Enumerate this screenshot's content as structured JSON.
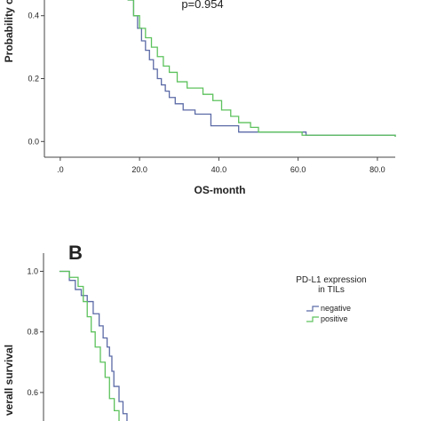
{
  "chart_data": [
    {
      "type": "line",
      "step": true,
      "y_label": "Probability o",
      "x_label": "OS-month",
      "annotation": "p=0.954",
      "xlim": [
        -4,
        84.5
      ],
      "ylim": [
        -0.05,
        0.45
      ],
      "xticks": [
        {
          "value": 0,
          "label": ".0"
        },
        {
          "value": 20,
          "label": "20.0"
        },
        {
          "value": 40,
          "label": "40.0"
        },
        {
          "value": 60,
          "label": "60.0"
        },
        {
          "value": 80,
          "label": "80.0"
        }
      ],
      "yticks": [
        {
          "value": 0,
          "label": "0.0"
        },
        0.2,
        0.4
      ],
      "series": [
        {
          "name": "negative",
          "color": "#5b6aa6",
          "x": [
            17,
            18.5,
            19.5,
            20.5,
            21.5,
            22.5,
            23.5,
            24.5,
            25.5,
            26.5,
            27.5,
            29,
            31,
            34,
            38,
            45,
            62,
            84.5
          ],
          "values": [
            0.45,
            0.4,
            0.36,
            0.32,
            0.29,
            0.26,
            0.23,
            0.2,
            0.18,
            0.16,
            0.14,
            0.12,
            0.1,
            0.087,
            0.05,
            0.03,
            0.02,
            0.015
          ]
        },
        {
          "name": "positive",
          "color": "#5dc25d",
          "x": [
            17,
            18.5,
            20,
            21.5,
            23,
            24.5,
            26,
            27.5,
            29.5,
            32,
            36,
            38.5,
            40.7,
            43,
            45,
            48,
            50,
            61,
            84.5
          ],
          "values": [
            0.45,
            0.4,
            0.36,
            0.33,
            0.3,
            0.27,
            0.24,
            0.22,
            0.19,
            0.17,
            0.15,
            0.13,
            0.1,
            0.08,
            0.06,
            0.045,
            0.03,
            0.02,
            0.015
          ]
        }
      ]
    },
    {
      "type": "line",
      "step": true,
      "panel_label": "B",
      "y_label": "verall survival",
      "legend_title": [
        "PD-L1 expression",
        "in TILs"
      ],
      "xlim": [
        -4,
        84.5
      ],
      "ylim": [
        0.5,
        1.06
      ],
      "yticks": [
        0.6,
        0.8,
        {
          "value": 1,
          "label": "1.0"
        }
      ],
      "series": [
        {
          "name": "negative",
          "color": "#5b6aa6",
          "x": [
            0,
            2.5,
            4,
            5.5,
            7,
            8.5,
            10,
            11,
            12,
            12.6,
            13.2,
            13.7,
            15,
            16,
            17
          ],
          "values": [
            1,
            0.97,
            0.94,
            0.92,
            0.9,
            0.86,
            0.82,
            0.78,
            0.75,
            0.72,
            0.67,
            0.62,
            0.57,
            0.53,
            0.5
          ]
        },
        {
          "name": "positive",
          "color": "#5dc25d",
          "x": [
            0,
            2.5,
            4.7,
            6,
            7,
            8,
            9,
            10.3,
            11.5,
            12.6,
            13.8,
            15
          ],
          "values": [
            1,
            0.98,
            0.95,
            0.9,
            0.85,
            0.8,
            0.75,
            0.7,
            0.65,
            0.58,
            0.54,
            0.5
          ]
        }
      ]
    }
  ]
}
